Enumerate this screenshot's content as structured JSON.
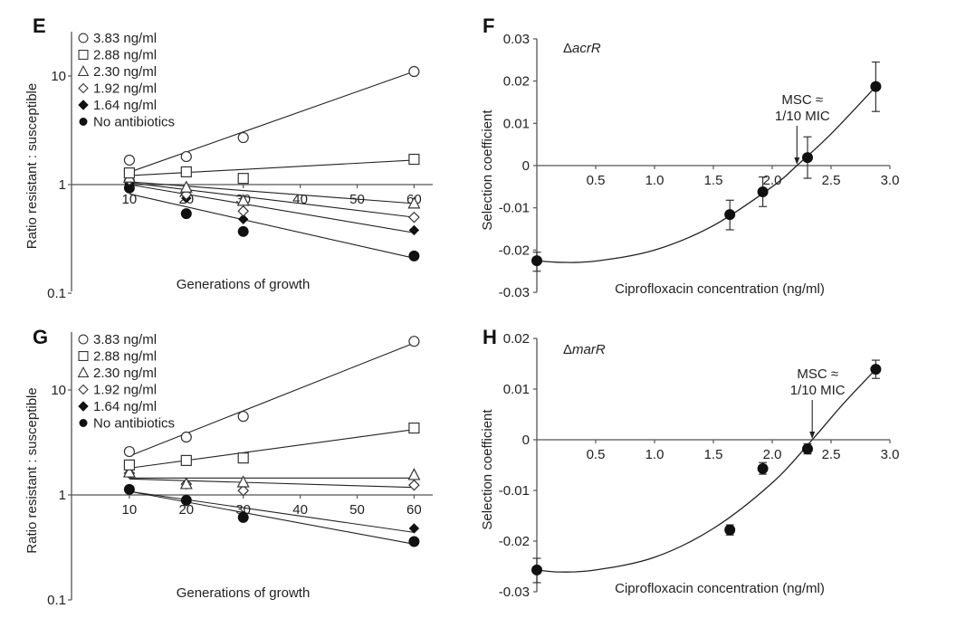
{
  "chart_data": [
    {
      "id": "E",
      "type": "scatter",
      "panel_label": "E",
      "title": "",
      "xlabel": "Generations of growth",
      "ylabel": "Ratio resistant : susceptible",
      "yscale": "log",
      "ylim": [
        0.1,
        30
      ],
      "xlim": [
        0,
        63
      ],
      "x_ticks": [
        10,
        20,
        30,
        40,
        50,
        60
      ],
      "x_tick_labels": [
        "10",
        "20",
        "30",
        "40",
        "50",
        "60"
      ],
      "y_ticks": [
        0.1,
        1,
        10
      ],
      "y_tick_labels": [
        "0.1",
        "1",
        "10"
      ],
      "x_axis_crosses_y_at": 1,
      "legend_position": "top-left",
      "x": [
        10,
        20,
        30,
        60
      ],
      "series": [
        {
          "name": "3.83 ng/ml",
          "marker": "circle-open",
          "values": [
            1.68,
            1.81,
            2.71,
            11.0
          ],
          "fit": [
            1.3,
            11.0
          ]
        },
        {
          "name": "2.88 ng/ml",
          "marker": "square-open",
          "values": [
            1.28,
            1.31,
            1.14,
            1.71
          ],
          "fit": [
            1.21,
            1.68
          ]
        },
        {
          "name": "2.30 ng/ml",
          "marker": "triangle-open",
          "values": [
            1.16,
            0.94,
            0.71,
            0.67
          ],
          "fit": [
            1.06,
            0.67
          ]
        },
        {
          "name": "1.92 ng/ml",
          "marker": "diamond-open",
          "values": [
            1.1,
            0.81,
            0.57,
            0.5
          ],
          "fit": [
            1.04,
            0.5
          ]
        },
        {
          "name": "1.64 ng/ml",
          "marker": "diamond-filled",
          "values": [
            1.02,
            0.75,
            0.48,
            0.38
          ],
          "fit": [
            1.0,
            0.36
          ]
        },
        {
          "name": "No antibiotics",
          "marker": "circle-filled",
          "values": [
            0.93,
            0.54,
            0.37,
            0.22
          ],
          "fit": [
            0.82,
            0.21
          ]
        }
      ]
    },
    {
      "id": "F",
      "type": "scatter",
      "panel_label": "F",
      "strain_prefix": "Δ",
      "strain_name": "acrR",
      "xlabel": "Ciprofloxacin concentration (ng/ml)",
      "ylabel": "Selection coefficient",
      "xlim": [
        0,
        3.0
      ],
      "ylim": [
        -0.03,
        0.03
      ],
      "x_ticks": [
        0.5,
        1.0,
        1.5,
        2.0,
        2.5,
        3.0
      ],
      "x_tick_labels": [
        "0.5",
        "1.0",
        "1.5",
        "2.0",
        "2.5",
        "3.0"
      ],
      "y_ticks": [
        0.03,
        0.02,
        0.01,
        0,
        -0.01,
        -0.02,
        -0.03
      ],
      "y_tick_labels": [
        "0.03",
        "0.02",
        "0.01",
        "0",
        "-0.01",
        "-0.02",
        "-0.03"
      ],
      "points": [
        {
          "x": 0,
          "y": -0.0225,
          "err_hi": -0.0205,
          "err_lo": -0.025
        },
        {
          "x": 1.64,
          "y": -0.0116,
          "err_hi": -0.0082,
          "err_lo": -0.0152
        },
        {
          "x": 1.92,
          "y": -0.0062,
          "err_hi": -0.0027,
          "err_lo": -0.0097
        },
        {
          "x": 2.3,
          "y": 0.0019,
          "err_hi": 0.0068,
          "err_lo": -0.003
        },
        {
          "x": 2.88,
          "y": 0.0187,
          "err_hi": 0.0245,
          "err_lo": 0.0128
        }
      ],
      "fit_curve": {
        "type": "quadratic",
        "x_range": [
          0,
          2.9
        ],
        "points": [
          [
            0,
            -0.0225
          ],
          [
            0.2,
            -0.0229
          ],
          [
            0.5,
            -0.0226
          ],
          [
            1.0,
            -0.02
          ],
          [
            1.5,
            -0.0142
          ],
          [
            2.0,
            -0.005
          ],
          [
            2.21,
            0.0
          ],
          [
            2.5,
            0.0075
          ],
          [
            2.88,
            0.0187
          ]
        ]
      },
      "msc_annotation": {
        "line1": "MSC ≈",
        "line2": "1/10 MIC",
        "x": 2.21
      }
    },
    {
      "id": "G",
      "type": "scatter",
      "panel_label": "G",
      "xlabel": "Generations of growth",
      "ylabel": "Ratio resistant : susceptible",
      "yscale": "log",
      "ylim": [
        0.1,
        40
      ],
      "xlim": [
        0,
        63
      ],
      "x_ticks": [
        10,
        20,
        30,
        40,
        50,
        60
      ],
      "x_tick_labels": [
        "10",
        "20",
        "30",
        "40",
        "50",
        "60"
      ],
      "y_ticks": [
        0.1,
        1,
        10
      ],
      "y_tick_labels": [
        "0.1",
        "1",
        "10"
      ],
      "x_axis_crosses_y_at": 1,
      "legend_position": "top-left",
      "x": [
        10,
        20,
        30,
        60
      ],
      "series": [
        {
          "name": "3.83 ng/ml",
          "marker": "circle-open",
          "values": [
            2.59,
            3.56,
            5.6,
            29.1
          ],
          "fit": [
            2.35,
            28.0
          ]
        },
        {
          "name": "2.88 ng/ml",
          "marker": "square-open",
          "values": [
            1.93,
            2.13,
            2.25,
            4.34
          ],
          "fit": [
            1.8,
            4.2
          ]
        },
        {
          "name": "2.30 ng/ml",
          "marker": "triangle-open",
          "values": [
            1.64,
            1.27,
            1.32,
            1.55
          ],
          "fit": [
            1.45,
            1.45
          ]
        },
        {
          "name": "1.92 ng/ml",
          "marker": "diamond-open",
          "values": [
            1.61,
            1.27,
            1.1,
            1.24
          ],
          "fit": [
            1.42,
            1.18
          ]
        },
        {
          "name": "1.64 ng/ml",
          "marker": "diamond-filled",
          "values": [
            1.13,
            0.87,
            0.63,
            0.48
          ],
          "fit": [
            1.08,
            0.44
          ]
        },
        {
          "name": "No antibiotics",
          "marker": "circle-filled",
          "values": [
            1.13,
            0.89,
            0.61,
            0.36
          ],
          "fit": [
            1.08,
            0.34
          ]
        }
      ]
    },
    {
      "id": "H",
      "type": "scatter",
      "panel_label": "H",
      "strain_prefix": "Δ",
      "strain_name": "marR",
      "xlabel": "Ciprofloxacin concentration (ng/ml)",
      "ylabel": "Selection coefficient",
      "xlim": [
        0,
        3.0
      ],
      "ylim": [
        -0.03,
        0.02
      ],
      "x_ticks": [
        0.5,
        1.0,
        1.5,
        2.0,
        2.5,
        3.0
      ],
      "x_tick_labels": [
        "0.5",
        "1.0",
        "1.5",
        "2.0",
        "2.5",
        "3.0"
      ],
      "y_ticks": [
        0.02,
        0.01,
        0,
        -0.01,
        -0.02,
        -0.03
      ],
      "y_tick_labels": [
        "0.02",
        "0.01",
        "0",
        "-0.01",
        "-0.02",
        "-0.03"
      ],
      "points": [
        {
          "x": 0,
          "y": -0.0257,
          "err_hi": -0.0234,
          "err_lo": -0.0282
        },
        {
          "x": 1.64,
          "y": -0.0178,
          "err_hi": -0.0168,
          "err_lo": -0.0188
        },
        {
          "x": 1.92,
          "y": -0.0057,
          "err_hi": -0.0045,
          "err_lo": -0.0068
        },
        {
          "x": 2.3,
          "y": -0.0018,
          "err_hi": -0.0008,
          "err_lo": -0.0028
        },
        {
          "x": 2.88,
          "y": 0.0139,
          "err_hi": 0.0157,
          "err_lo": 0.0121
        }
      ],
      "fit_curve": {
        "type": "quadratic",
        "x_range": [
          0,
          2.9
        ],
        "points": [
          [
            0,
            -0.0257
          ],
          [
            0.2,
            -0.0261
          ],
          [
            0.5,
            -0.0257
          ],
          [
            1.0,
            -0.0232
          ],
          [
            1.5,
            -0.0175
          ],
          [
            2.0,
            -0.0085
          ],
          [
            2.34,
            0.0
          ],
          [
            2.6,
            0.007
          ],
          [
            2.88,
            0.0139
          ]
        ]
      },
      "msc_annotation": {
        "line1": "MSC ≈",
        "line2": "1/10 MIC",
        "x": 2.34
      }
    }
  ]
}
